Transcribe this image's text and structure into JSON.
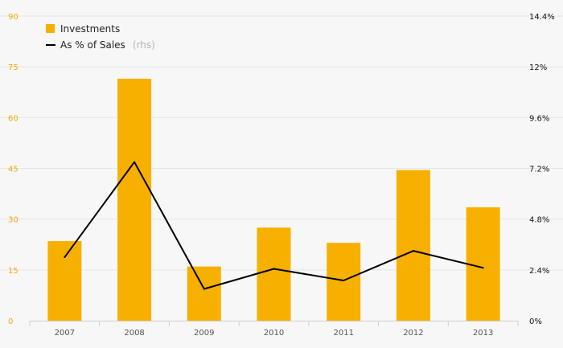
{
  "chart_data": {
    "type": "bar",
    "categories": [
      "2007",
      "2008",
      "2009",
      "2010",
      "2011",
      "2012",
      "2013"
    ],
    "series": [
      {
        "name": "Investments",
        "type": "bar",
        "axis": "left",
        "values": [
          23.5,
          71.5,
          16,
          27.5,
          23,
          44.5,
          33.5
        ]
      },
      {
        "name": "As % of Sales",
        "name_note": "(rhs)",
        "type": "line",
        "axis": "right",
        "values": [
          3.0,
          7.5,
          1.5,
          2.45,
          1.9,
          3.3,
          2.5
        ]
      }
    ],
    "left_axis": {
      "ylim": [
        0,
        90
      ],
      "ticks": [
        0,
        15,
        30,
        45,
        60,
        75,
        90
      ],
      "tick_labels": [
        "0",
        "15",
        "30",
        "45",
        "60",
        "75",
        "90"
      ]
    },
    "right_axis": {
      "ylim": [
        0,
        14.4
      ],
      "ticks": [
        0,
        2.4,
        4.8,
        7.2,
        9.6,
        12,
        14.4
      ],
      "tick_labels": [
        "0%",
        "2.4%",
        "4.8%",
        "7.2%",
        "9.6%",
        "12%",
        "14.4%"
      ]
    },
    "grid": true,
    "legend": "top-left",
    "colors": {
      "bar": "#f7b000",
      "line": "#000000",
      "left_tick": "#f2a900",
      "grid": "#e6e6e6",
      "background": "#f7f7f7"
    }
  }
}
